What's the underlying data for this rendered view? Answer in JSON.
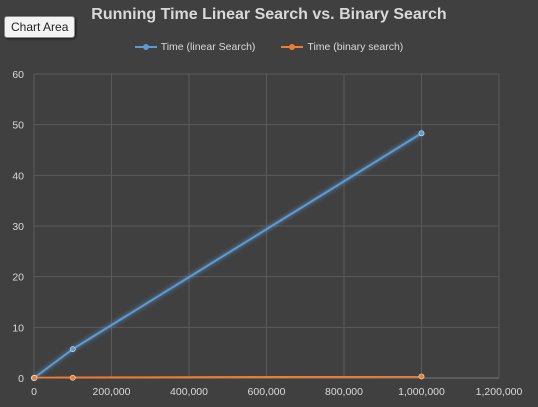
{
  "tooltip": {
    "label": "Chart Area"
  },
  "chart_data": {
    "type": "line",
    "title": "Running Time Linear Search vs. Binary Search",
    "xlabel": "",
    "ylabel": "",
    "xlim": [
      0,
      1200000
    ],
    "ylim": [
      0,
      60
    ],
    "x_ticks": [
      0,
      200000,
      400000,
      600000,
      800000,
      1000000,
      1200000
    ],
    "x_tick_labels": [
      "0",
      "200,000",
      "400,000",
      "600,000",
      "800,000",
      "1,000,000",
      "1,200,000"
    ],
    "y_ticks": [
      0,
      10,
      20,
      30,
      40,
      50,
      60
    ],
    "y_tick_labels": [
      "0",
      "10",
      "20",
      "30",
      "40",
      "50",
      "60"
    ],
    "grid": true,
    "legend_position": "top",
    "series": [
      {
        "name": "Time (linear Search)",
        "color": "#5b9bd5",
        "x": [
          10,
          1000,
          100000,
          1000000
        ],
        "y": [
          0.0,
          0.05,
          5.7,
          48.3
        ]
      },
      {
        "name": "Time (binary search)",
        "color": "#ed7d31",
        "x": [
          10,
          1000,
          100000,
          1000000
        ],
        "y": [
          0.0,
          0.0,
          0.05,
          0.3
        ]
      }
    ]
  }
}
